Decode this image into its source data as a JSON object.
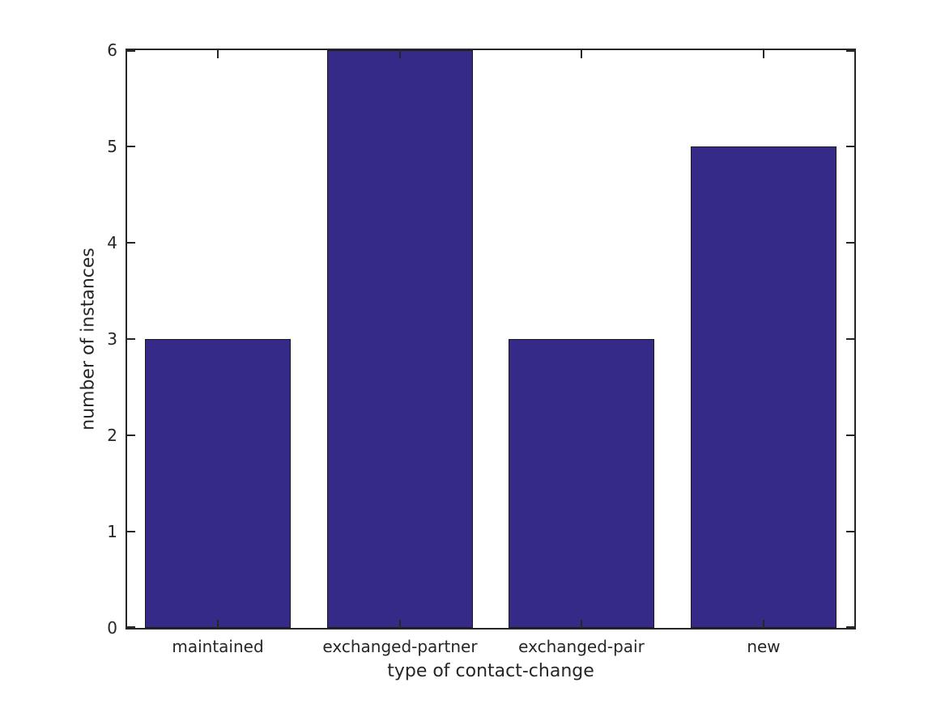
{
  "figure": {
    "background": "#ffffff",
    "text_color": "#262626",
    "axis_color": "#262626"
  },
  "chart_data": {
    "type": "bar",
    "title": "",
    "categories": [
      "maintained",
      "exchanged-partner",
      "exchanged-pair",
      "new"
    ],
    "values": [
      3,
      6,
      3,
      5
    ],
    "xlabel": "type of contact-change",
    "ylabel": "number of instances",
    "ylim": [
      0,
      6
    ],
    "yticks": [
      0,
      1,
      2,
      3,
      4,
      5,
      6
    ],
    "ytick_labels": [
      "0",
      "1",
      "2",
      "3",
      "4",
      "5",
      "6"
    ],
    "bar_color": "#352A87",
    "bar_edge_color": "#1a1a1a",
    "bar_width_fraction": 0.8,
    "grid": false,
    "legend": false,
    "tick_direction": "in",
    "box": true
  }
}
